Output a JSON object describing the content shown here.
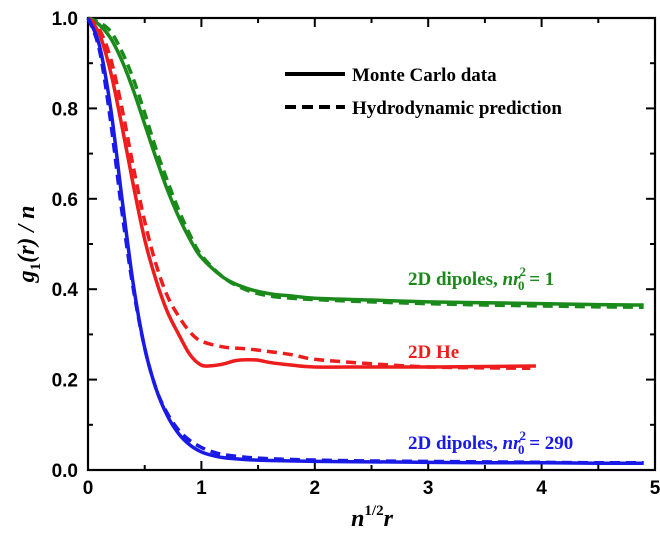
{
  "chart_data": {
    "type": "line",
    "xlabel": "n^{1/2}r",
    "ylabel": "g_1(r) / n",
    "xlim": [
      0,
      5
    ],
    "ylim": [
      0,
      1.0
    ],
    "x_ticks": [
      "0",
      "1",
      "2",
      "3",
      "4",
      "5"
    ],
    "y_ticks": [
      "0.0",
      "0.2",
      "0.4",
      "0.6",
      "0.8",
      "1.0"
    ],
    "legend": {
      "position": "top-right",
      "entries": [
        {
          "label": "Monte Carlo data",
          "style": "solid"
        },
        {
          "label": "Hydrodynamic prediction",
          "style": "dashed"
        }
      ]
    },
    "series": [
      {
        "name": "2D dipoles, nr_0^2 = 1",
        "color": "#1a8a1a",
        "style": "solid",
        "x": [
          0,
          0.1,
          0.2,
          0.3,
          0.4,
          0.5,
          0.6,
          0.7,
          0.8,
          0.9,
          1.0,
          1.2,
          1.4,
          1.6,
          1.8,
          2.0,
          2.5,
          3.0,
          3.5,
          4.0,
          4.5,
          4.9
        ],
        "y": [
          1.0,
          0.985,
          0.955,
          0.905,
          0.84,
          0.765,
          0.69,
          0.62,
          0.56,
          0.51,
          0.47,
          0.425,
          0.402,
          0.39,
          0.385,
          0.38,
          0.376,
          0.372,
          0.37,
          0.368,
          0.366,
          0.365
        ]
      },
      {
        "name": "2D dipoles, nr_0^2 = 1",
        "color": "#1a8a1a",
        "style": "dashed",
        "x": [
          0,
          0.1,
          0.2,
          0.3,
          0.4,
          0.5,
          0.6,
          0.7,
          0.8,
          0.9,
          1.0,
          1.2,
          1.4,
          1.6,
          1.8,
          2.0,
          2.5,
          3.0,
          3.5,
          4.0,
          4.5,
          4.9
        ],
        "y": [
          1.0,
          0.99,
          0.97,
          0.925,
          0.865,
          0.79,
          0.71,
          0.64,
          0.575,
          0.52,
          0.475,
          0.425,
          0.398,
          0.385,
          0.38,
          0.377,
          0.372,
          0.368,
          0.365,
          0.363,
          0.361,
          0.36
        ]
      },
      {
        "name": "2D He",
        "color": "#ee1c1c",
        "style": "solid",
        "x": [
          0,
          0.1,
          0.2,
          0.3,
          0.4,
          0.5,
          0.6,
          0.7,
          0.8,
          0.9,
          1.0,
          1.1,
          1.2,
          1.3,
          1.4,
          1.5,
          1.6,
          1.8,
          2.0,
          2.5,
          3.0,
          3.5,
          3.95
        ],
        "y": [
          1.0,
          0.965,
          0.88,
          0.76,
          0.63,
          0.51,
          0.42,
          0.35,
          0.3,
          0.255,
          0.232,
          0.231,
          0.235,
          0.242,
          0.244,
          0.243,
          0.238,
          0.232,
          0.228,
          0.228,
          0.228,
          0.229,
          0.23
        ]
      },
      {
        "name": "2D He",
        "color": "#ee1c1c",
        "style": "dashed",
        "x": [
          0,
          0.1,
          0.2,
          0.3,
          0.4,
          0.5,
          0.6,
          0.7,
          0.8,
          0.9,
          1.0,
          1.2,
          1.4,
          1.6,
          1.8,
          2.0,
          2.5,
          3.0,
          3.5,
          3.9
        ],
        "y": [
          1.0,
          0.975,
          0.91,
          0.8,
          0.67,
          0.55,
          0.455,
          0.385,
          0.34,
          0.305,
          0.285,
          0.272,
          0.268,
          0.262,
          0.255,
          0.245,
          0.235,
          0.228,
          0.226,
          0.225
        ]
      },
      {
        "name": "2D dipoles, nr_0^2 = 290",
        "color": "#1a1ae6",
        "style": "solid",
        "x": [
          0,
          0.1,
          0.2,
          0.3,
          0.4,
          0.5,
          0.6,
          0.7,
          0.8,
          0.9,
          1.0,
          1.1,
          1.2,
          1.4,
          1.6,
          2.0,
          2.5,
          3.0,
          3.5,
          4.0,
          4.5,
          4.9
        ],
        "y": [
          1.0,
          0.94,
          0.8,
          0.6,
          0.41,
          0.27,
          0.18,
          0.12,
          0.08,
          0.055,
          0.04,
          0.032,
          0.027,
          0.023,
          0.021,
          0.019,
          0.018,
          0.017,
          0.016,
          0.016,
          0.015,
          0.015
        ]
      },
      {
        "name": "2D dipoles, nr_0^2 = 290",
        "color": "#1a1ae6",
        "style": "dashed",
        "x": [
          0,
          0.1,
          0.2,
          0.3,
          0.4,
          0.5,
          0.6,
          0.7,
          0.8,
          0.9,
          1.0,
          1.1,
          1.2,
          1.4,
          1.6,
          2.0,
          2.5,
          3.0,
          3.5,
          4.0,
          4.5,
          4.9
        ],
        "y": [
          1.0,
          0.93,
          0.77,
          0.57,
          0.4,
          0.27,
          0.18,
          0.125,
          0.088,
          0.065,
          0.05,
          0.04,
          0.034,
          0.028,
          0.025,
          0.022,
          0.02,
          0.019,
          0.018,
          0.017,
          0.016,
          0.016
        ]
      }
    ],
    "annotations": [
      {
        "text_prefix": "2D dipoles, ",
        "var": "nr",
        "sub": "0",
        "sup": "2",
        "text_suffix": " = 1",
        "color": "#1a8a1a"
      },
      {
        "text": "2D He",
        "color": "#ee1c1c"
      },
      {
        "text_prefix": "2D dipoles, ",
        "var": "nr",
        "sub": "0",
        "sup": "2",
        "text_suffix": " = 290",
        "color": "#1a1ae6"
      }
    ]
  }
}
